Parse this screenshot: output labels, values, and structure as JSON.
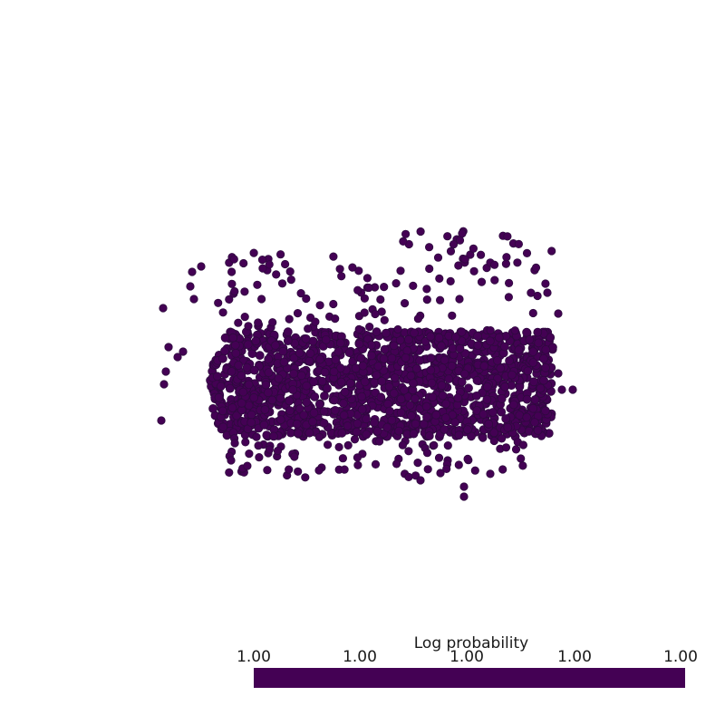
{
  "colorbar": {
    "title": "Log probability",
    "ticks": [
      "1.00",
      "1.00",
      "1.00",
      "1.00",
      "1.00"
    ],
    "color": "#440154"
  },
  "point_cloud": {
    "point_color": "#440154",
    "point_edge_color": "#2e0a3e"
  }
}
